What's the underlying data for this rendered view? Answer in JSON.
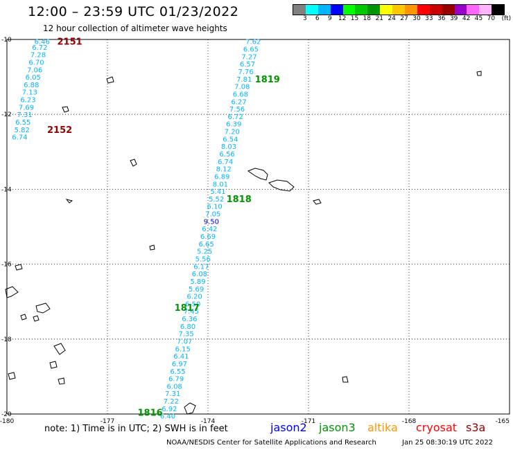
{
  "header": {
    "title": "12:00 – 23:59 UTC 01/23/2022",
    "subtitle": "12 hour collection of altimeter wave heights"
  },
  "colorbar": {
    "colors": [
      "#808080",
      "#00ffff",
      "#00b4ff",
      "#0000ff",
      "#00ff00",
      "#00c800",
      "#009600",
      "#ffff00",
      "#ffc800",
      "#ff9600",
      "#ff0000",
      "#c80000",
      "#960000",
      "#9600c8",
      "#ff64ff",
      "#ffb4ff",
      "#000000"
    ],
    "labels": [
      "3",
      "6",
      "9",
      "12",
      "15",
      "18",
      "21",
      "24",
      "27",
      "30",
      "33",
      "36",
      "39",
      "42",
      "45",
      "70",
      "(ft)"
    ]
  },
  "chart_data": {
    "type": "map",
    "lat_range": [
      -20,
      -10
    ],
    "lon_range": [
      -180,
      -165
    ],
    "lat_ticks": [
      "-10",
      "-12",
      "-14",
      "-16",
      "-18",
      "-20"
    ],
    "lon_ticks": [
      "-180",
      "-177",
      "-174",
      "-171",
      "-168",
      "-165"
    ],
    "tracks": [
      {
        "name": "2151",
        "label_color": "#960000",
        "label_lon": -178.5,
        "label_lat": -10.05,
        "value_color": "#00b4ff",
        "points": [
          {
            "v": "6.46",
            "lat": -10.05,
            "lon": -178.95
          },
          {
            "v": "6.72",
            "lat": -10.2,
            "lon": -179.02
          },
          {
            "v": "7.28",
            "lat": -10.4,
            "lon": -179.07
          },
          {
            "v": "6.70",
            "lat": -10.6,
            "lon": -179.12
          },
          {
            "v": "7.06",
            "lat": -10.8,
            "lon": -179.17
          },
          {
            "v": "6.05",
            "lat": -11.0,
            "lon": -179.22
          },
          {
            "v": "6.88",
            "lat": -11.2,
            "lon": -179.27
          },
          {
            "v": "7.13",
            "lat": -11.4,
            "lon": -179.32
          },
          {
            "v": "6.23",
            "lat": -11.6,
            "lon": -179.37
          },
          {
            "v": "7.69",
            "lat": -11.8,
            "lon": -179.42
          },
          {
            "v": "7.31",
            "lat": -12.0,
            "lon": -179.47
          },
          {
            "v": "6.55",
            "lat": -12.2,
            "lon": -179.52
          },
          {
            "v": "5.82",
            "lat": -12.4,
            "lon": -179.55
          },
          {
            "v": "6.74",
            "lat": -12.6,
            "lon": -179.62
          }
        ]
      },
      {
        "name": "2152",
        "label_color": "#960000",
        "label_lon": -178.8,
        "label_lat": -12.4,
        "value_color": "#00b4ff",
        "points": []
      },
      {
        "name": "1819",
        "label_color": "#009600",
        "label_lon": -172.6,
        "label_lat": -11.05,
        "value_color": "#00b4ff",
        "points": [
          {
            "v": "7.62",
            "lat": -10.05,
            "lon": -172.65
          },
          {
            "v": "6.65",
            "lat": -10.25,
            "lon": -172.72
          },
          {
            "v": "7.27",
            "lat": -10.45,
            "lon": -172.77
          },
          {
            "v": "6.57",
            "lat": -10.65,
            "lon": -172.82
          },
          {
            "v": "7.76",
            "lat": -10.85,
            "lon": -172.87
          },
          {
            "v": "7.81",
            "lat": -11.05,
            "lon": -172.92
          },
          {
            "v": "7.08",
            "lat": -11.25,
            "lon": -172.98
          },
          {
            "v": "6.68",
            "lat": -11.45,
            "lon": -173.03
          },
          {
            "v": "6.27",
            "lat": -11.65,
            "lon": -173.08
          },
          {
            "v": "7.56",
            "lat": -11.85,
            "lon": -173.13
          },
          {
            "v": "6.72",
            "lat": -12.05,
            "lon": -173.18
          },
          {
            "v": "6.39",
            "lat": -12.25,
            "lon": -173.23
          },
          {
            "v": "7.20",
            "lat": -12.45,
            "lon": -173.28
          },
          {
            "v": "6.54",
            "lat": -12.65,
            "lon": -173.33
          },
          {
            "v": "8.03",
            "lat": -12.85,
            "lon": -173.38
          },
          {
            "v": "6.56",
            "lat": -13.05,
            "lon": -173.43
          },
          {
            "v": "6.74",
            "lat": -13.25,
            "lon": -173.48
          },
          {
            "v": "8.12",
            "lat": -13.45,
            "lon": -173.53
          },
          {
            "v": "6.89",
            "lat": -13.65,
            "lon": -173.58
          },
          {
            "v": "8.01",
            "lat": -13.85,
            "lon": -173.63
          }
        ]
      },
      {
        "name": "1818",
        "label_color": "#009600",
        "label_lon": -173.45,
        "label_lat": -14.25,
        "value_color": "#00b4ff",
        "points": [
          {
            "v": "5.41",
            "lat": -14.05,
            "lon": -173.7
          },
          {
            "v": "5.52",
            "lat": -14.25,
            "lon": -173.75
          },
          {
            "v": "6.10",
            "lat": -14.45,
            "lon": -173.8
          },
          {
            "v": "7.05",
            "lat": -14.65,
            "lon": -173.85
          },
          {
            "v": "9.50",
            "lat": -14.85,
            "lon": -173.9
          },
          {
            "v": "6.42",
            "lat": -15.05,
            "lon": -173.95
          },
          {
            "v": "6.69",
            "lat": -15.25,
            "lon": -174.0
          },
          {
            "v": "6.65",
            "lat": -15.45,
            "lon": -174.05
          },
          {
            "v": "5.25",
            "lat": -15.65,
            "lon": -174.1
          },
          {
            "v": "5.56",
            "lat": -15.85,
            "lon": -174.15
          },
          {
            "v": "6.17",
            "lat": -16.05,
            "lon": -174.2
          },
          {
            "v": "6.08",
            "lat": -16.25,
            "lon": -174.25
          }
        ]
      },
      {
        "name": "1817",
        "label_color": "#009600",
        "label_lon": -175.0,
        "label_lat": -17.15,
        "value_color": "#00b4ff",
        "points": [
          {
            "v": "5.89",
            "lat": -16.45,
            "lon": -174.3
          },
          {
            "v": "5.69",
            "lat": -16.65,
            "lon": -174.35
          },
          {
            "v": "6.20",
            "lat": -16.85,
            "lon": -174.4
          },
          {
            "v": "6.50",
            "lat": -17.05,
            "lon": -174.45
          },
          {
            "v": "7.45",
            "lat": -17.25,
            "lon": -174.5
          },
          {
            "v": "6.36",
            "lat": -17.45,
            "lon": -174.55
          },
          {
            "v": "6.80",
            "lat": -17.65,
            "lon": -174.6
          },
          {
            "v": "7.35",
            "lat": -17.85,
            "lon": -174.65
          },
          {
            "v": "7.07",
            "lat": -18.05,
            "lon": -174.7
          },
          {
            "v": "6.15",
            "lat": -18.25,
            "lon": -174.75
          },
          {
            "v": "6.41",
            "lat": -18.45,
            "lon": -174.8
          },
          {
            "v": "6.97",
            "lat": -18.65,
            "lon": -174.85
          },
          {
            "v": "6.55",
            "lat": -18.85,
            "lon": -174.9
          },
          {
            "v": "6.79",
            "lat": -19.05,
            "lon": -174.95
          },
          {
            "v": "6.08",
            "lat": -19.25,
            "lon": -175.0
          },
          {
            "v": "7.31",
            "lat": -19.45,
            "lon": -175.05
          },
          {
            "v": "7.22",
            "lat": -19.65,
            "lon": -175.1
          },
          {
            "v": "6.92",
            "lat": -19.85,
            "lon": -175.15
          }
        ]
      },
      {
        "name": "1816",
        "label_color": "#009600",
        "label_lon": -176.1,
        "label_lat": -19.95,
        "value_color": "#00b4ff",
        "points": [
          {
            "v": "6.40",
            "lat": -20.05,
            "lon": -175.2
          }
        ]
      }
    ]
  },
  "footer": {
    "note": "note:  1) Time is in UTC;  2) SWH is in feet",
    "missions": [
      {
        "name": "jason2",
        "color": "#0000ff"
      },
      {
        "name": "jason3",
        "color": "#009600"
      },
      {
        "name": "altika",
        "color": "#ff9600"
      },
      {
        "name": "cryosat",
        "color": "#ff0000"
      },
      {
        "name": "s3a",
        "color": "#960000"
      }
    ],
    "credit": "NOAA/NESDIS Center for Satellite Applications and Research",
    "timestamp": "Jan 25 08:30:19 UTC 2022"
  }
}
